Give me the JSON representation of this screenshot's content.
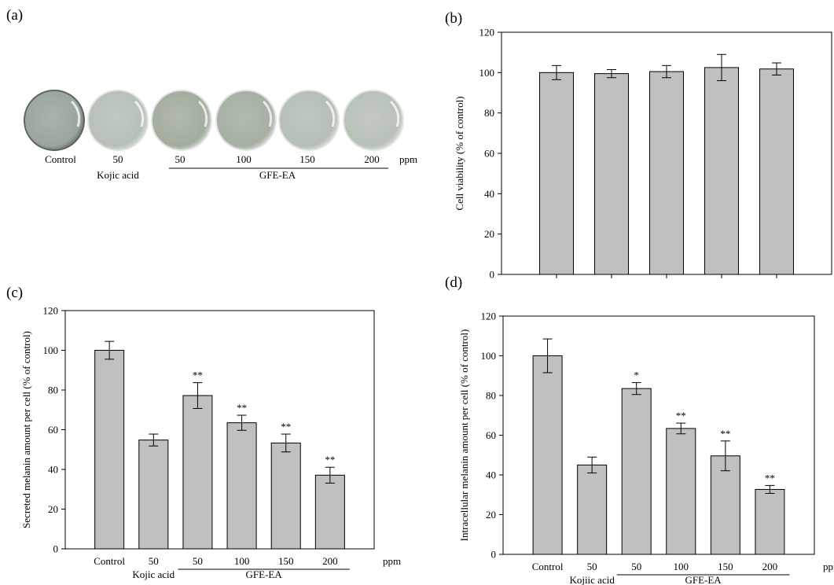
{
  "colors": {
    "bar_fill": "#c0c0c0",
    "bar_stroke": "#000000",
    "dish_rim": "#e6ece6"
  },
  "panel_a": {
    "label": "(a)",
    "dishes": [
      {
        "name": "Control",
        "tint": "#9aa69c",
        "rim": "#5c665e"
      },
      {
        "name": "Kojic acid 50",
        "tint": "#b6c0b8",
        "rim": "#dde3dd"
      },
      {
        "name": "GFE-EA 50",
        "tint": "#a3ad9f",
        "rim": "#e0e6e0"
      },
      {
        "name": "GFE-EA 100",
        "tint": "#a5afa3",
        "rim": "#e0e6e0"
      },
      {
        "name": "GFE-EA 150",
        "tint": "#b5bfb6",
        "rim": "#e0e6e0"
      },
      {
        "name": "GFE-EA 200",
        "tint": "#b8c1b8",
        "rim": "#e0e6e0"
      }
    ],
    "row1": [
      "Control",
      "50",
      "50",
      "100",
      "150",
      "200",
      "ppm"
    ],
    "kojic": "Kojic acid",
    "group": "GFE-EA"
  },
  "chart_data": [
    {
      "panel": "(b)",
      "type": "bar",
      "categories": [
        "",
        "",
        "",
        "",
        ""
      ],
      "values": [
        100,
        99.5,
        100.5,
        102.5,
        101.8
      ],
      "errors": [
        3.5,
        2,
        3,
        6.5,
        3
      ],
      "sig": [
        "",
        "",
        "",
        "",
        ""
      ],
      "ylabel": "Cell viability (% of control)",
      "ylim": [
        0,
        120
      ],
      "yticks": [
        0,
        20,
        40,
        60,
        80,
        100,
        120
      ],
      "show_ticks": true
    },
    {
      "panel": "(c)",
      "type": "bar",
      "categories": [
        "Control",
        "50",
        "50",
        "100",
        "150",
        "200"
      ],
      "values": [
        100,
        54.8,
        77.2,
        63.5,
        53.3,
        37.1
      ],
      "errors": [
        4.5,
        3,
        6.5,
        3.8,
        4.5,
        4
      ],
      "sig": [
        "",
        "",
        "**",
        "**",
        "**",
        "**"
      ],
      "ylabel": "Secreted melanin amount per cell (% of control)",
      "ylim": [
        0,
        120
      ],
      "yticks": [
        0,
        20,
        40,
        60,
        80,
        100,
        120
      ],
      "unit": "ppm",
      "kojic": "Kojic acid",
      "group": "GFE-EA"
    },
    {
      "panel": "(d)",
      "type": "bar",
      "categories": [
        "Control",
        "50",
        "50",
        "100",
        "150",
        "200"
      ],
      "values": [
        100,
        45,
        83.5,
        63.4,
        49.6,
        32.7
      ],
      "errors": [
        8.5,
        4,
        3,
        2.7,
        7.5,
        2
      ],
      "sig": [
        "",
        "",
        "*",
        "**",
        "**",
        "**"
      ],
      "ylabel": "Intracellular melanin amount per cell (% of control)",
      "ylim": [
        0,
        120
      ],
      "yticks": [
        0,
        20,
        40,
        60,
        80,
        100,
        120
      ],
      "unit": "ppm",
      "kojic": "Kojiic acid",
      "group": "GFE-EA"
    }
  ]
}
